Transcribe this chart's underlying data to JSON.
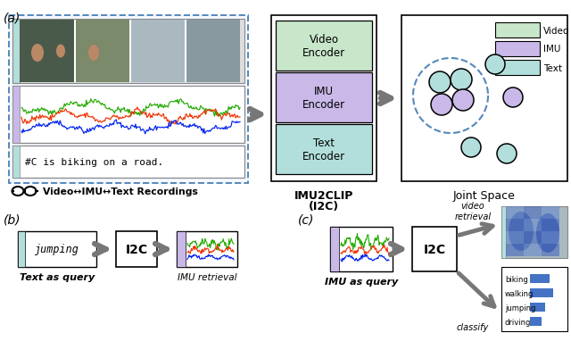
{
  "encoder_labels": [
    "Video\nEncoder",
    "IMU\nEncoder",
    "Text\nEncoder"
  ],
  "encoder_colors": [
    "#c8e6c9",
    "#c9b8e8",
    "#b2dfdb"
  ],
  "joint_space_label": "Joint Space",
  "imu2clip_label1": "IMU2CLIP",
  "imu2clip_label2": "(I2C)",
  "recordings_label": "Video↔IMU↔Text Recordings",
  "legend_labels": [
    "Video",
    "IMU",
    "Text"
  ],
  "legend_colors": [
    "#c8e6c9",
    "#c9b8e8",
    "#b2dfdb"
  ],
  "bar_labels": [
    "biking",
    "walking",
    "jumping",
    "driving"
  ],
  "bar_values": [
    0.52,
    0.62,
    0.4,
    0.32
  ],
  "bar_color": "#4472c4",
  "dashed_box_color": "#5588bb",
  "signal_green": "#22aa00",
  "signal_red": "#ee3300",
  "signal_blue": "#0022ee",
  "bg_color": "#ffffff",
  "circle_green": "#b2dfdb",
  "circle_purple": "#c9b8e8",
  "video_strip_color": "#b2dfdb",
  "imu_strip_color": "#c9b8e8",
  "text_strip_color": "#b2dfdb"
}
